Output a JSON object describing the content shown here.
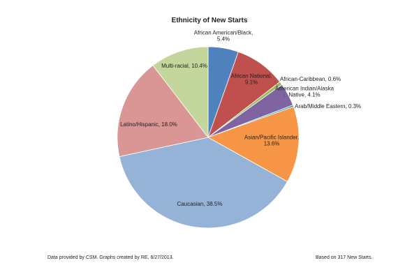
{
  "chart_data": {
    "type": "pie",
    "title": "Ethnicity of New Starts",
    "slices": [
      {
        "label": "African American/Black",
        "value": 5.4,
        "color": "#4f81bd"
      },
      {
        "label": "African National",
        "value": 9.1,
        "color": "#c0504d"
      },
      {
        "label": "African-Caribbean",
        "value": 0.6,
        "color": "#9bbb59"
      },
      {
        "label": "American Indian/Alaska Native",
        "value": 4.1,
        "color": "#8064a2"
      },
      {
        "label": "Arab/Middle Eastern",
        "value": 0.3,
        "color": "#4bacc6"
      },
      {
        "label": "Asian/Pacific Islander",
        "value": 13.6,
        "color": "#f79646"
      },
      {
        "label": "Caucasian",
        "value": 38.5,
        "color": "#95b3d7"
      },
      {
        "label": "Latino/Hispanic",
        "value": 18.0,
        "color": "#d99694"
      },
      {
        "label": "Multi-racial",
        "value": 10.4,
        "color": "#c3d69b"
      }
    ],
    "labels": [
      [
        "African American/Black,",
        "5.4%"
      ],
      [
        "African National,",
        "9.1%"
      ],
      [
        "African-Caribbean, 0.6%"
      ],
      [
        "American Indian/Alaska",
        "Native, 4.1%"
      ],
      [
        "Arab/Middle Eastern, 0.3%"
      ],
      [
        "Asian/Pacific Islander,",
        "13.6%"
      ],
      [
        "Caucasian, 38.5%"
      ],
      [
        "Latino/Hispanic, 18.0%"
      ],
      [
        "Multi-racial, 10.4%"
      ]
    ]
  },
  "footer": {
    "source": "Data provided by CSM. Graphs created by RE, 6/27/2013.",
    "basis": "Based on 317 New Starts."
  }
}
